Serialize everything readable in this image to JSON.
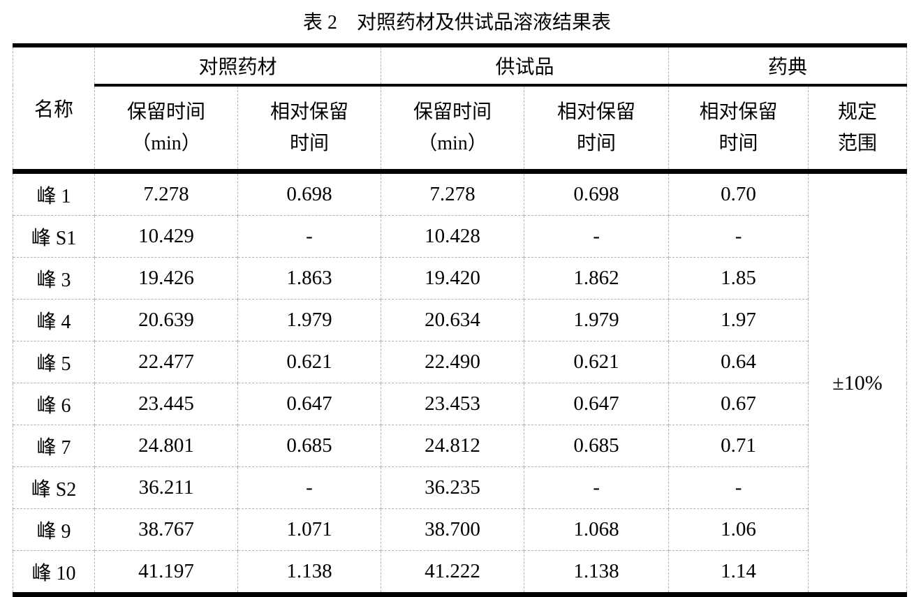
{
  "title": "表 2　对照药材及供试品溶液结果表",
  "colors": {
    "background": "#ffffff",
    "text": "#000000",
    "solid_rule": "#000000",
    "dashed_grid": "#b3b3b3"
  },
  "table": {
    "header": {
      "name": "名称",
      "groups": [
        {
          "label": "对照药材"
        },
        {
          "label": "供试品"
        },
        {
          "label": "药典"
        }
      ],
      "subcols": [
        "保留时间\n（min）",
        "相对保留\n时间",
        "保留时间\n（min）",
        "相对保留\n时间",
        "相对保留\n时间",
        "规定\n范围"
      ]
    },
    "rows": [
      {
        "name": "峰 1",
        "ref_rt": "7.278",
        "ref_rrt": "0.698",
        "test_rt": "7.278",
        "test_rrt": "0.698",
        "pharm_rrt": "0.70"
      },
      {
        "name": "峰 S1",
        "ref_rt": "10.429",
        "ref_rrt": "-",
        "test_rt": "10.428",
        "test_rrt": "-",
        "pharm_rrt": "-"
      },
      {
        "name": "峰 3",
        "ref_rt": "19.426",
        "ref_rrt": "1.863",
        "test_rt": "19.420",
        "test_rrt": "1.862",
        "pharm_rrt": "1.85"
      },
      {
        "name": "峰 4",
        "ref_rt": "20.639",
        "ref_rrt": "1.979",
        "test_rt": "20.634",
        "test_rrt": "1.979",
        "pharm_rrt": "1.97"
      },
      {
        "name": "峰 5",
        "ref_rt": "22.477",
        "ref_rrt": "0.621",
        "test_rt": "22.490",
        "test_rrt": "0.621",
        "pharm_rrt": "0.64"
      },
      {
        "name": "峰 6",
        "ref_rt": "23.445",
        "ref_rrt": "0.647",
        "test_rt": "23.453",
        "test_rrt": "0.647",
        "pharm_rrt": "0.67"
      },
      {
        "name": "峰 7",
        "ref_rt": "24.801",
        "ref_rrt": "0.685",
        "test_rt": "24.812",
        "test_rrt": "0.685",
        "pharm_rrt": "0.71"
      },
      {
        "name": "峰 S2",
        "ref_rt": "36.211",
        "ref_rrt": "-",
        "test_rt": "36.235",
        "test_rrt": "-",
        "pharm_rrt": "-"
      },
      {
        "name": "峰 9",
        "ref_rt": "38.767",
        "ref_rrt": "1.071",
        "test_rt": "38.700",
        "test_rrt": "1.068",
        "pharm_rrt": "1.06"
      },
      {
        "name": "峰 10",
        "ref_rt": "41.197",
        "ref_rrt": "1.138",
        "test_rt": "41.222",
        "test_rrt": "1.138",
        "pharm_rrt": "1.14"
      }
    ],
    "range_value": "±10%"
  }
}
